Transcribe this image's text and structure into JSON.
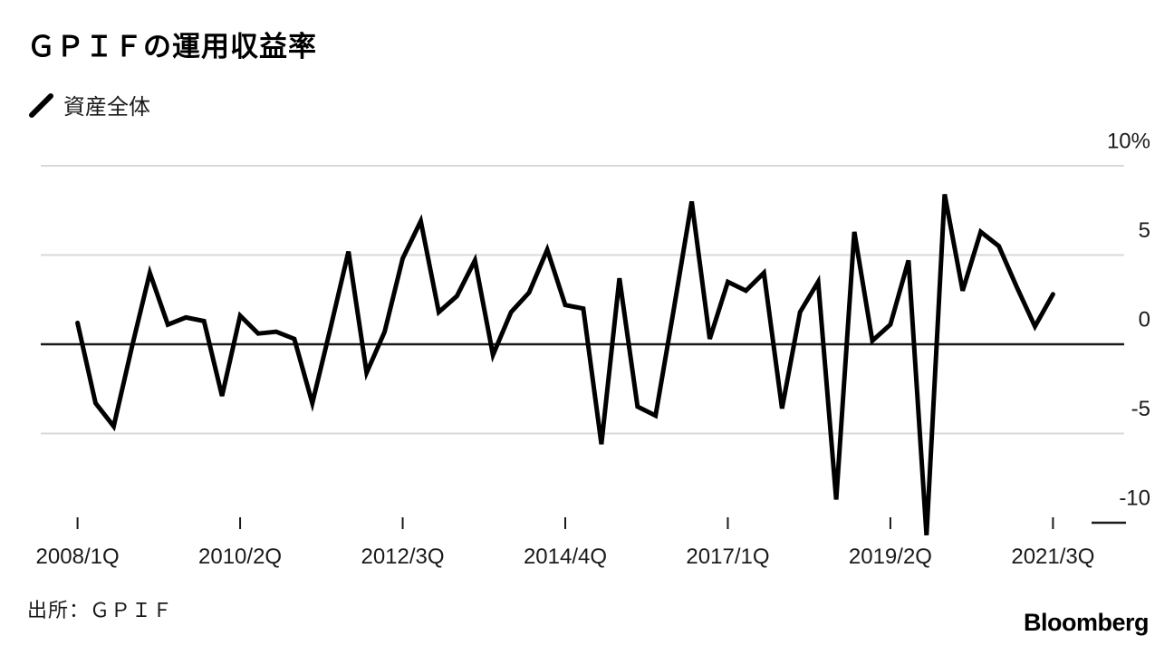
{
  "header": {
    "title": "ＧＰＩＦの運用収益率"
  },
  "legend": {
    "swatch_icon": "line-swatch",
    "label": "資産全体",
    "color": "#000000"
  },
  "source": {
    "label": "出所：ＧＰＩＦ"
  },
  "branding": {
    "logo": "Bloomberg"
  },
  "chart_data": {
    "type": "line",
    "title": "ＧＰＩＦの運用収益率",
    "series_name": "資産全体",
    "unit": "%",
    "x": [
      "2008/1Q",
      "2008/2Q",
      "2008/3Q",
      "2008/4Q",
      "2009/1Q",
      "2009/2Q",
      "2009/3Q",
      "2009/4Q",
      "2010/1Q",
      "2010/2Q",
      "2010/3Q",
      "2010/4Q",
      "2011/1Q",
      "2011/2Q",
      "2011/3Q",
      "2011/4Q",
      "2012/1Q",
      "2012/2Q",
      "2012/3Q",
      "2012/4Q",
      "2013/1Q",
      "2013/2Q",
      "2013/3Q",
      "2013/4Q",
      "2014/1Q",
      "2014/2Q",
      "2014/3Q",
      "2014/4Q",
      "2015/1Q",
      "2015/2Q",
      "2015/3Q",
      "2015/4Q",
      "2016/1Q",
      "2016/2Q",
      "2016/3Q",
      "2016/4Q",
      "2017/1Q",
      "2017/2Q",
      "2017/3Q",
      "2017/4Q",
      "2018/1Q",
      "2018/2Q",
      "2018/3Q",
      "2018/4Q",
      "2019/1Q",
      "2019/2Q",
      "2019/3Q",
      "2019/4Q",
      "2020/1Q",
      "2020/2Q",
      "2020/3Q",
      "2020/4Q",
      "2021/1Q",
      "2021/2Q",
      "2021/3Q"
    ],
    "values": [
      1.2,
      -3.3,
      -4.6,
      -0.2,
      4.0,
      1.1,
      1.5,
      1.3,
      -2.9,
      1.6,
      0.6,
      0.7,
      0.3,
      -3.3,
      0.9,
      5.2,
      -1.6,
      0.7,
      4.8,
      6.9,
      1.8,
      2.7,
      4.7,
      -0.6,
      1.8,
      2.9,
      5.3,
      2.2,
      2.0,
      -5.6,
      3.7,
      -3.5,
      -4.0,
      1.9,
      8.0,
      0.3,
      3.5,
      3.0,
      4.0,
      -3.6,
      1.8,
      3.5,
      -8.7,
      6.3,
      0.2,
      1.1,
      4.7,
      -10.7,
      8.4,
      3.0,
      6.3,
      5.5,
      3.2,
      1.0,
      2.8
    ],
    "x_tick_labels": [
      "2008/1Q",
      "2010/2Q",
      "2012/3Q",
      "2014/4Q",
      "2017/1Q",
      "2019/2Q",
      "2021/3Q"
    ],
    "x_tick_indices": [
      0,
      9,
      18,
      27,
      36,
      45,
      54
    ],
    "y_ticks": [
      {
        "label": "10%",
        "value": 10
      },
      {
        "label": "5",
        "value": 5
      },
      {
        "label": "0",
        "value": 0
      },
      {
        "label": "-5",
        "value": -5
      },
      {
        "label": "-10",
        "value": -10
      }
    ],
    "y_axis": {
      "gridline_values": [
        10,
        5,
        -5
      ],
      "zero_line_value": 0,
      "stub_value": -10,
      "min": -11,
      "max": 10
    },
    "legend_position": "top-left",
    "grid": true,
    "line_color": "#000000",
    "grid_color": "#d9d9d9",
    "axis_color": "#1a1a1a"
  }
}
